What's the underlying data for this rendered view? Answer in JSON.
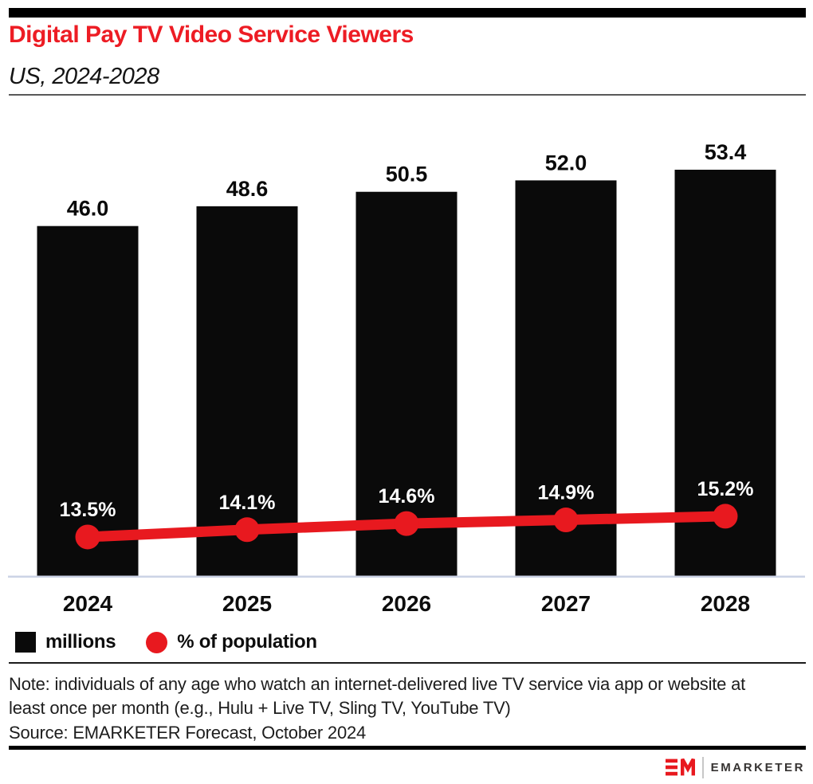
{
  "header": {
    "title": "Digital Pay TV Video Service Viewers",
    "subtitle": "US, 2024-2028"
  },
  "chart_data": {
    "type": "bar",
    "title": "Digital Pay TV Video Service Viewers",
    "subtitle": "US, 2024-2028",
    "categories": [
      "2024",
      "2025",
      "2026",
      "2027",
      "2028"
    ],
    "series": [
      {
        "name": "millions",
        "type": "bar",
        "color": "#0a0a0a",
        "values": [
          46.0,
          48.6,
          50.5,
          52.0,
          53.4
        ],
        "labels": [
          "46.0",
          "48.6",
          "50.5",
          "52.0",
          "53.4"
        ]
      },
      {
        "name": "% of population",
        "type": "line",
        "color": "#e8191f",
        "values": [
          13.5,
          14.1,
          14.6,
          14.9,
          15.2
        ],
        "labels": [
          "13.5%",
          "14.1%",
          "14.6%",
          "14.9%",
          "15.2%"
        ]
      }
    ],
    "xlabel": "",
    "ylabel": "",
    "ylim": [
      0,
      60
    ],
    "y2lim": [
      10.3,
      47.7
    ],
    "grid": false,
    "legend_position": "bottom",
    "bar_width_frac": 0.635,
    "baseline_color": "#ccd3e6"
  },
  "legend": {
    "items": [
      {
        "label": "millions",
        "swatch": "square",
        "color": "#0a0a0a"
      },
      {
        "label": "% of population",
        "swatch": "circle",
        "color": "#e8191f"
      }
    ]
  },
  "footnote": {
    "note": "Note: individuals of any age who watch an internet-delivered live TV service via app or website at least once per month (e.g., Hulu + Live TV, Sling TV, YouTube TV)",
    "source": "Source: EMARKETER Forecast, October 2024"
  },
  "footer": {
    "brand": "EMARKETER",
    "logo": "em-monogram",
    "accent_color": "#e8191f"
  }
}
